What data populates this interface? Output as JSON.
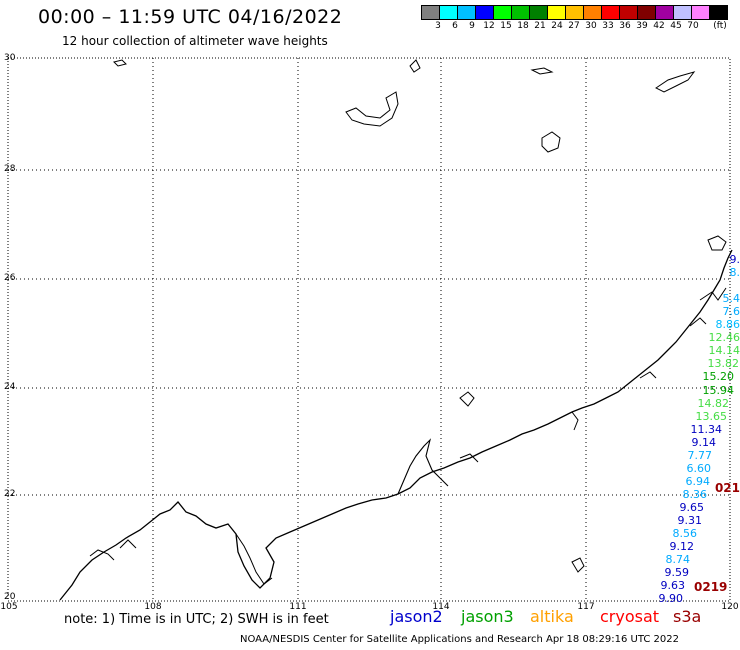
{
  "header": {
    "title": "00:00 – 11:59 UTC 04/16/2022",
    "subtitle": "12 hour collection of altimeter wave heights"
  },
  "color_scale": {
    "unit": "(ft)",
    "colors": [
      "#808080",
      "#00ffff",
      "#00c0ff",
      "#0000ff",
      "#00ff00",
      "#00c000",
      "#008000",
      "#ffff00",
      "#ffc000",
      "#ff8000",
      "#ff0000",
      "#c00000",
      "#800000",
      "#a000a0",
      "#c0c0ff",
      "#ff80ff",
      "#000000"
    ],
    "labels": [
      "3",
      "6",
      "9",
      "12",
      "15",
      "18",
      "21",
      "24",
      "27",
      "30",
      "33",
      "36",
      "39",
      "42",
      "45",
      "70"
    ]
  },
  "axes": {
    "lat_labels": [
      "30",
      "28",
      "26",
      "24",
      "22",
      "20"
    ],
    "lon_labels": [
      "105",
      "108",
      "111",
      "114",
      "117",
      "120"
    ]
  },
  "swh_readings": [
    {
      "text": "9.",
      "color": "#0000c0"
    },
    {
      "text": "8.",
      "color": "#00aaff"
    },
    {
      "text": "",
      "color": "#00aaff"
    },
    {
      "text": "5.4",
      "color": "#00aaff"
    },
    {
      "text": "7.6",
      "color": "#00aaff"
    },
    {
      "text": "8.86",
      "color": "#00bbff"
    },
    {
      "text": "12.46",
      "color": "#44dd44"
    },
    {
      "text": "14.14",
      "color": "#44dd44"
    },
    {
      "text": "13.82",
      "color": "#44dd44"
    },
    {
      "text": "15.20",
      "color": "#00a000"
    },
    {
      "text": "15.94",
      "color": "#00a000"
    },
    {
      "text": "14.82",
      "color": "#44dd44"
    },
    {
      "text": "13.65",
      "color": "#44dd44"
    },
    {
      "text": "11.34",
      "color": "#0000c0"
    },
    {
      "text": "9.14",
      "color": "#0000c0"
    },
    {
      "text": "7.77",
      "color": "#00aaff"
    },
    {
      "text": "6.60",
      "color": "#00aaff"
    },
    {
      "text": "6.94",
      "color": "#00aaff"
    },
    {
      "text": "8.36",
      "color": "#00aaff"
    },
    {
      "text": "9.65",
      "color": "#0000c0"
    },
    {
      "text": "9.31",
      "color": "#0000c0"
    },
    {
      "text": "8.56",
      "color": "#00aaff"
    },
    {
      "text": "9.12",
      "color": "#0000c0"
    },
    {
      "text": "8.74",
      "color": "#00aaff"
    },
    {
      "text": "9.59",
      "color": "#0000c0"
    },
    {
      "text": "9.63",
      "color": "#0000c0"
    },
    {
      "text": "9.90",
      "color": "#0000c0"
    }
  ],
  "cryosat_labels": [
    "021",
    "0219"
  ],
  "note": "note:  1) Time is in UTC;  2) SWH is in feet",
  "missions": [
    {
      "name": "jason2",
      "color": "#0000cc"
    },
    {
      "name": "jason3",
      "color": "#00a000"
    },
    {
      "name": "altika",
      "color": "#ffa000"
    },
    {
      "name": "cryosat",
      "color": "#ff0000"
    },
    {
      "name": "s3a",
      "color": "#990000"
    }
  ],
  "footer": "NOAA/NESDIS Center for Satellite Applications and Research    Apr 18 08:29:16 UTC 2022"
}
